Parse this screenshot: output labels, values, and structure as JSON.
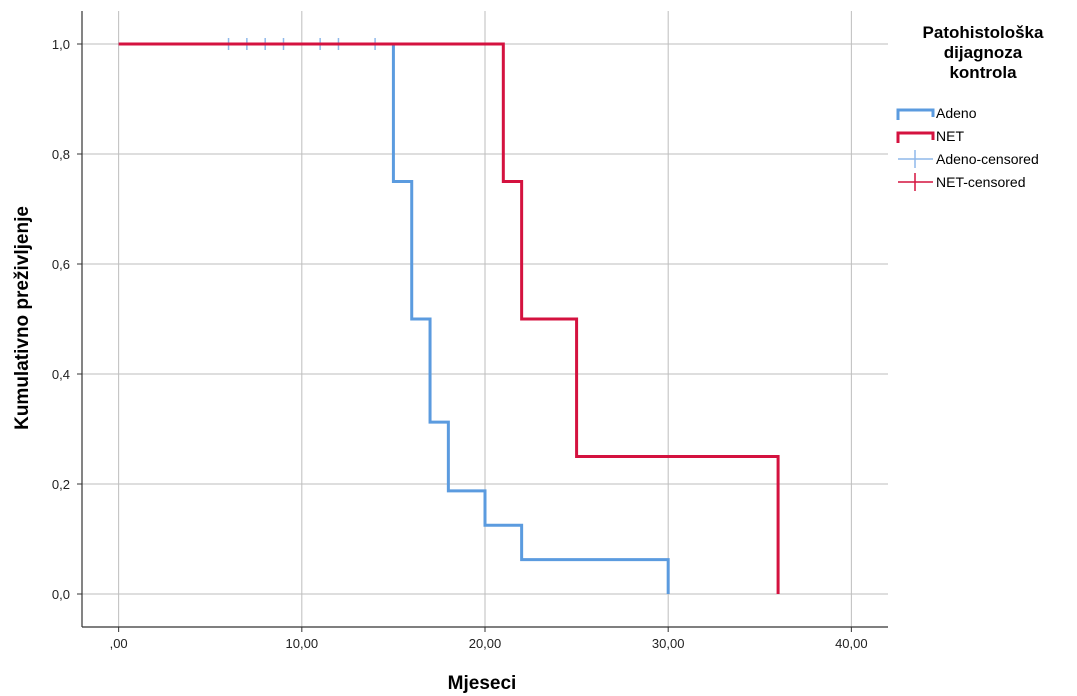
{
  "chart_data": {
    "type": "line",
    "xlabel": "Mjeseci",
    "ylabel": "Kumulativno preživljenje",
    "xlim": [
      -2,
      42
    ],
    "ylim": [
      -0.06,
      1.06
    ],
    "x_ticks": [
      0,
      10,
      20,
      30,
      40
    ],
    "x_tick_labels": [
      ",00",
      "10,00",
      "20,00",
      "30,00",
      "40,00"
    ],
    "y_ticks": [
      0,
      0.2,
      0.4,
      0.6,
      0.8,
      1.0
    ],
    "y_tick_labels": [
      "0,0",
      "0,2",
      "0,4",
      "0,6",
      "0,8",
      "1,0"
    ],
    "grid": true,
    "legend": {
      "title_lines": [
        "Patohistološka",
        "dijagnoza",
        "kontrola"
      ],
      "placement": "right",
      "entries": [
        {
          "label": "Adeno",
          "kind": "step",
          "color": "#5b9bdf"
        },
        {
          "label": "NET",
          "kind": "step",
          "color": "#d4123f"
        },
        {
          "label": "Adeno-censored",
          "kind": "censor",
          "color": "#8fb8ea"
        },
        {
          "label": "NET-censored",
          "kind": "censor",
          "color": "#d4123f"
        }
      ]
    },
    "series": [
      {
        "name": "Adeno",
        "color": "#5b9bdf",
        "steps": [
          [
            0,
            1.0
          ],
          [
            15,
            0.75
          ],
          [
            16,
            0.5
          ],
          [
            17,
            0.3125
          ],
          [
            18,
            0.1875
          ],
          [
            20,
            0.125
          ],
          [
            22,
            0.0625
          ],
          [
            30,
            0.0
          ]
        ],
        "censored_x": [
          6,
          7,
          8,
          9,
          11,
          12,
          14
        ],
        "censored_color": "#8fb8ea"
      },
      {
        "name": "NET",
        "color": "#d4123f",
        "steps": [
          [
            0,
            1.0
          ],
          [
            21,
            0.75
          ],
          [
            22,
            0.5
          ],
          [
            25,
            0.25
          ],
          [
            36,
            0.0
          ]
        ],
        "censored_x": []
      }
    ]
  }
}
